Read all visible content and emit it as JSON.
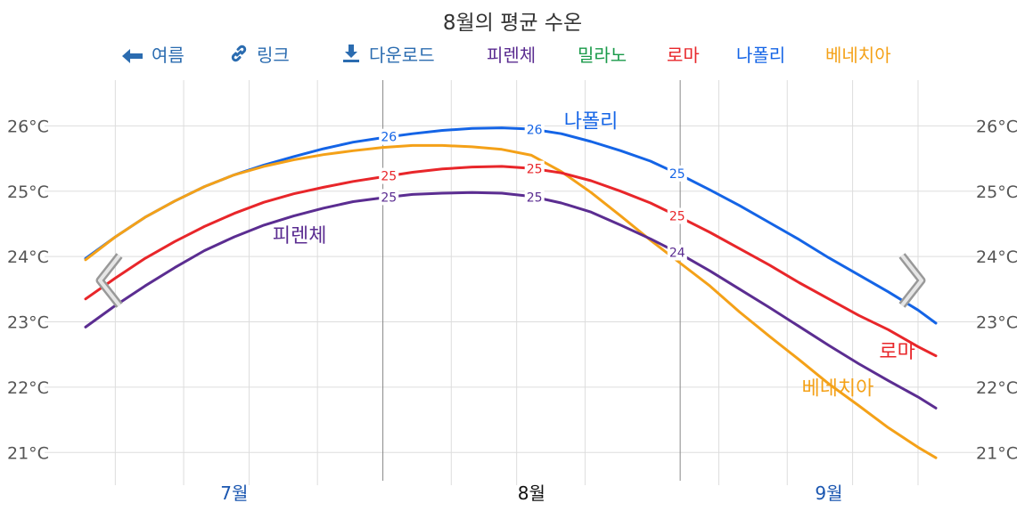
{
  "title": "8월의 평균 수온",
  "toolbar": {
    "prev_label": "여름",
    "link_label": "링크",
    "download_label": "다운로드",
    "legend": [
      {
        "name": "피렌체",
        "color": "#5b2d91"
      },
      {
        "name": "밀라노",
        "color": "#1a9a4a"
      },
      {
        "name": "로마",
        "color": "#e8262a"
      },
      {
        "name": "나폴리",
        "color": "#1464e6"
      },
      {
        "name": "베네치아",
        "color": "#f4a118"
      }
    ]
  },
  "icons": {
    "prev": "arrow-left-icon",
    "link": "link-icon",
    "download": "download-icon",
    "nav_left": "chevron-left-icon",
    "nav_right": "chevron-right-icon"
  },
  "colors": {
    "nav": "#2b6cb0",
    "grid": "#dddddd",
    "month_divider": "#888888",
    "axis_text": "#555555",
    "month_text": "#1a56b0",
    "month_current": "#111111"
  },
  "chart_data": {
    "type": "line",
    "title": "8월의 평균 수온",
    "y_unit": "°C",
    "ylim": [
      20.5,
      26.7
    ],
    "yticks": [
      21,
      22,
      23,
      24,
      25,
      26
    ],
    "ytick_labels": [
      "21°C",
      "22°C",
      "23°C",
      "24°C",
      "25°C",
      "26°C"
    ],
    "x_range": [
      7.0,
      9.86
    ],
    "months": [
      {
        "label": "7월",
        "x": 7.5,
        "current": false
      },
      {
        "label": "8월",
        "x": 8.5,
        "current": true
      },
      {
        "label": "9월",
        "x": 9.5,
        "current": false
      }
    ],
    "month_boundaries": [
      8.0,
      9.0
    ],
    "grid_x": [
      7.1,
      7.33,
      7.55,
      7.78,
      8.23,
      8.45,
      8.68,
      9.13,
      9.36,
      9.58,
      9.8
    ],
    "grid": true,
    "series": [
      {
        "name": "나폴리",
        "color": "#1464e6",
        "x": [
          7.0,
          7.1,
          7.2,
          7.3,
          7.4,
          7.5,
          7.6,
          7.7,
          7.8,
          7.9,
          8.0,
          8.1,
          8.2,
          8.3,
          8.4,
          8.5,
          8.6,
          8.7,
          8.8,
          8.9,
          9.0,
          9.1,
          9.2,
          9.3,
          9.4,
          9.5,
          9.6,
          9.7,
          9.8,
          9.86
        ],
        "values": [
          23.97,
          24.3,
          24.6,
          24.85,
          25.07,
          25.25,
          25.4,
          25.53,
          25.65,
          25.75,
          25.82,
          25.88,
          25.93,
          25.96,
          25.97,
          25.95,
          25.88,
          25.76,
          25.62,
          25.46,
          25.25,
          25.02,
          24.78,
          24.52,
          24.26,
          23.98,
          23.72,
          23.46,
          23.18,
          22.98
        ],
        "point_labels": [
          {
            "x": 8.02,
            "text": "26"
          },
          {
            "x": 8.51,
            "text": "26"
          },
          {
            "x": 8.99,
            "text": "25"
          }
        ],
        "line_label": {
          "text": "나폴리",
          "x": 8.7,
          "y": 25.97
        }
      },
      {
        "name": "베네치아",
        "color": "#f4a118",
        "x": [
          7.0,
          7.1,
          7.2,
          7.3,
          7.4,
          7.5,
          7.6,
          7.7,
          7.8,
          7.9,
          8.0,
          8.1,
          8.2,
          8.3,
          8.4,
          8.5,
          8.6,
          8.7,
          8.8,
          8.9,
          9.0,
          9.1,
          9.2,
          9.3,
          9.4,
          9.5,
          9.6,
          9.7,
          9.8,
          9.86
        ],
        "values": [
          23.95,
          24.3,
          24.6,
          24.85,
          25.07,
          25.25,
          25.38,
          25.48,
          25.56,
          25.62,
          25.67,
          25.7,
          25.7,
          25.68,
          25.64,
          25.55,
          25.3,
          24.98,
          24.62,
          24.25,
          23.9,
          23.55,
          23.15,
          22.78,
          22.42,
          22.05,
          21.72,
          21.38,
          21.08,
          20.92
        ],
        "point_labels": [],
        "line_label": {
          "text": "베네치아",
          "x": 9.53,
          "y": 21.88
        }
      },
      {
        "name": "로마",
        "color": "#e8262a",
        "x": [
          7.0,
          7.1,
          7.2,
          7.3,
          7.4,
          7.5,
          7.6,
          7.7,
          7.8,
          7.9,
          8.0,
          8.1,
          8.2,
          8.3,
          8.4,
          8.5,
          8.6,
          8.7,
          8.8,
          8.9,
          9.0,
          9.1,
          9.2,
          9.3,
          9.4,
          9.5,
          9.6,
          9.7,
          9.8,
          9.86
        ],
        "values": [
          23.35,
          23.67,
          23.97,
          24.23,
          24.46,
          24.66,
          24.83,
          24.96,
          25.06,
          25.15,
          25.22,
          25.29,
          25.34,
          25.37,
          25.38,
          25.35,
          25.28,
          25.16,
          25.0,
          24.82,
          24.6,
          24.37,
          24.12,
          23.87,
          23.6,
          23.35,
          23.1,
          22.88,
          22.62,
          22.48
        ],
        "point_labels": [
          {
            "x": 8.02,
            "text": "25"
          },
          {
            "x": 8.51,
            "text": "25"
          },
          {
            "x": 8.99,
            "text": "25"
          }
        ],
        "line_label": {
          "text": "로마",
          "x": 9.73,
          "y": 22.45
        }
      },
      {
        "name": "피렌체",
        "color": "#5b2d91",
        "x": [
          7.0,
          7.1,
          7.2,
          7.3,
          7.4,
          7.5,
          7.6,
          7.7,
          7.8,
          7.9,
          8.0,
          8.1,
          8.2,
          8.3,
          8.4,
          8.5,
          8.6,
          8.7,
          8.8,
          8.9,
          9.0,
          9.1,
          9.2,
          9.3,
          9.4,
          9.5,
          9.6,
          9.7,
          9.8,
          9.86
        ],
        "values": [
          22.92,
          23.25,
          23.55,
          23.83,
          24.09,
          24.3,
          24.48,
          24.62,
          24.74,
          24.84,
          24.9,
          24.95,
          24.97,
          24.98,
          24.97,
          24.92,
          24.82,
          24.68,
          24.48,
          24.27,
          24.04,
          23.78,
          23.5,
          23.22,
          22.93,
          22.64,
          22.36,
          22.1,
          21.85,
          21.68
        ],
        "point_labels": [
          {
            "x": 8.02,
            "text": "25"
          },
          {
            "x": 8.51,
            "text": "25"
          },
          {
            "x": 8.99,
            "text": "24"
          }
        ],
        "line_label": {
          "text": "피렌체",
          "x": 7.72,
          "y": 24.22
        }
      }
    ]
  }
}
